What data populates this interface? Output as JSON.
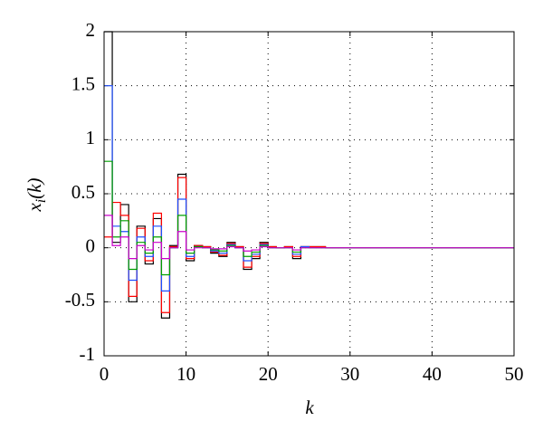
{
  "chart_data": {
    "type": "stairs",
    "x_label": "k",
    "y_label_parts": [
      "x",
      "i",
      "(k)"
    ],
    "x": [
      0,
      1,
      2,
      3,
      4,
      5,
      6,
      7,
      8,
      9,
      10,
      11,
      12,
      13,
      14,
      15,
      16,
      17,
      18,
      19,
      20,
      21,
      22,
      23,
      24,
      25,
      26,
      27,
      28,
      29,
      30
    ],
    "series": [
      {
        "color": "#000000",
        "values": [
          2,
          0.05,
          0.4,
          -0.5,
          0.2,
          -0.15,
          0.27,
          -0.65,
          0.02,
          0.68,
          -0.12,
          0.02,
          0.01,
          -0.05,
          -0.08,
          0.05,
          0.01,
          -0.2,
          -0.1,
          0.05,
          0.01,
          0,
          0.01,
          -0.1,
          0.01,
          0.01,
          0.01,
          0,
          0,
          0,
          0
        ]
      },
      {
        "color": "#ff0000",
        "values": [
          0.1,
          0.42,
          0.3,
          -0.45,
          0.18,
          -0.12,
          0.32,
          -0.6,
          0.01,
          0.65,
          -0.1,
          0.02,
          0.01,
          -0.04,
          -0.07,
          0.04,
          0.01,
          -0.18,
          -0.08,
          0.04,
          0.01,
          0,
          0.01,
          -0.08,
          0.01,
          0.01,
          0.01,
          0,
          0,
          0,
          0
        ]
      },
      {
        "color": "#1f4fff",
        "values": [
          1.5,
          0.2,
          0.15,
          -0.3,
          0.1,
          -0.08,
          0.2,
          -0.4,
          0,
          0.45,
          -0.08,
          0.01,
          0,
          -0.03,
          -0.05,
          0.03,
          0,
          -0.12,
          -0.06,
          0.03,
          0,
          0,
          0,
          -0.06,
          0.01,
          0,
          0,
          0,
          0,
          0,
          0
        ]
      },
      {
        "color": "#00a000",
        "values": [
          0.8,
          0.1,
          0.25,
          -0.2,
          0.05,
          -0.05,
          0.1,
          -0.25,
          0,
          0.3,
          -0.05,
          0.01,
          0,
          -0.02,
          -0.03,
          0.02,
          0,
          -0.08,
          -0.04,
          0.02,
          0,
          0,
          0,
          -0.04,
          0,
          0,
          0,
          0,
          0,
          0,
          0
        ]
      },
      {
        "color": "#cc00cc",
        "values": [
          0.3,
          0.02,
          0.1,
          -0.1,
          0.02,
          -0.02,
          0.05,
          -0.1,
          0,
          0.15,
          -0.02,
          0,
          0,
          -0.01,
          -0.01,
          0.01,
          0,
          -0.03,
          -0.02,
          0.01,
          0,
          0,
          0,
          -0.02,
          0,
          0,
          0,
          0,
          0,
          0,
          0
        ]
      }
    ],
    "xlim": [
      0,
      50
    ],
    "xticks": [
      0,
      10,
      20,
      30,
      40,
      50
    ],
    "ylim": [
      -1,
      2
    ],
    "yticks": [
      -1,
      -0.5,
      0,
      0.5,
      1,
      1.5,
      2
    ],
    "grid": true
  }
}
